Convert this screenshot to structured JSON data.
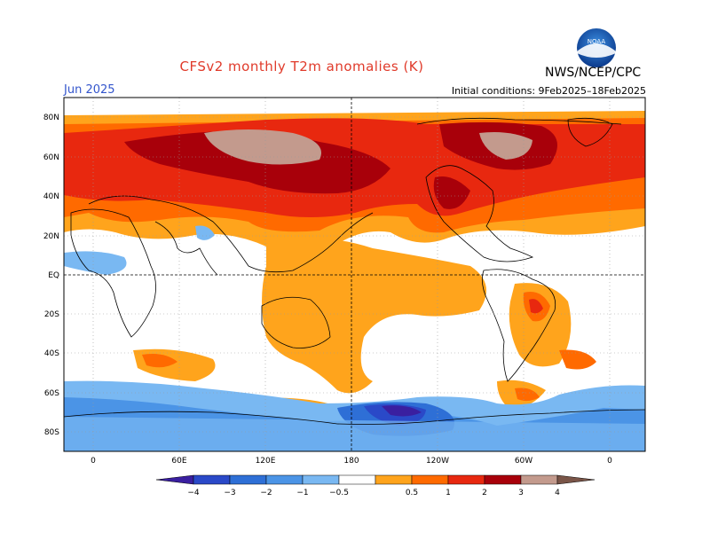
{
  "header": {
    "title": "CFSv2 monthly T2m anomalies (K)",
    "agency": "NWS/NCEP/CPC",
    "month": "Jun 2025",
    "initial_conditions": "Initial conditions: 9Feb2025–18Feb2025",
    "logo_text": "NOAA"
  },
  "map": {
    "lat_labels": [
      "80N",
      "60N",
      "40N",
      "20N",
      "EQ",
      "20S",
      "40S",
      "60S",
      "80S"
    ],
    "lon_labels": [
      "0",
      "60E",
      "120E",
      "180",
      "120W",
      "60W",
      "0"
    ]
  },
  "colorbar": {
    "labels": [
      "−4",
      "−3",
      "−2",
      "−1",
      "−0.5",
      "0.5",
      "1",
      "2",
      "3",
      "4"
    ],
    "colors": [
      "#3a1fa0",
      "#2a49c8",
      "#2e6fd6",
      "#4b94e6",
      "#79b8f2",
      "#ffffff",
      "#ffa41c",
      "#ff6a00",
      "#e8280f",
      "#a8000a",
      "#c39a8d",
      "#7a5548"
    ]
  }
}
